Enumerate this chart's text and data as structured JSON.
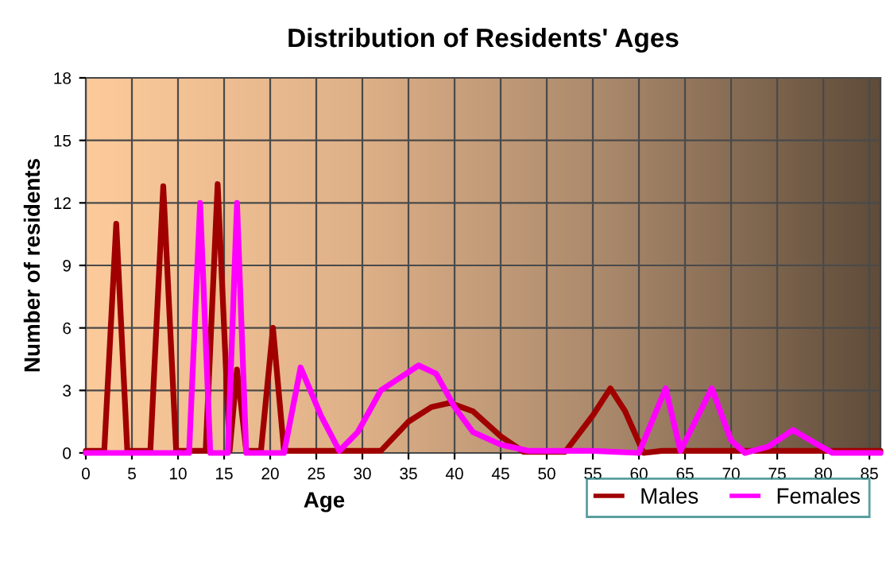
{
  "chart_data": {
    "type": "line",
    "title": "Distribution of Residents' Ages",
    "xlabel": "Age",
    "ylabel": "Number of residents",
    "xlim": [
      0,
      86.2
    ],
    "xticks": [
      0,
      5,
      10,
      15,
      20,
      25,
      30,
      35,
      40,
      45,
      50,
      55,
      60,
      65,
      70,
      75,
      80,
      85
    ],
    "ylim": [
      0,
      18
    ],
    "yticks": [
      0,
      3,
      6,
      9,
      12,
      15,
      18
    ],
    "grid": true,
    "legend": "bottom right",
    "line_style": "solid",
    "marker": "none",
    "series": [
      {
        "name": "Males",
        "color": "#a00000",
        "x": [
          0,
          2,
          3.3,
          4.5,
          7,
          8.4,
          9.8,
          13,
          14.3,
          15.6,
          16.4,
          17.4,
          19,
          20.3,
          21.5,
          25,
          30,
          32,
          35,
          37.5,
          39.5,
          42,
          45,
          47.5,
          52,
          55,
          56.9,
          58.5,
          60.5,
          62.5,
          86.2
        ],
        "values": [
          0.1,
          0.1,
          11,
          0.1,
          0.1,
          12.8,
          0.1,
          0.1,
          12.9,
          0.1,
          4,
          0.1,
          0.1,
          6,
          0.1,
          0.1,
          0.1,
          0.1,
          1.5,
          2.2,
          2.4,
          2.0,
          0.8,
          0.05,
          0.05,
          1.8,
          3.1,
          2.0,
          0,
          0.1,
          0.1
        ]
      },
      {
        "name": "Females",
        "color": "#ff00ff",
        "x": [
          0,
          11.2,
          12.4,
          13.5,
          15.4,
          16.4,
          17.4,
          20,
          21.5,
          23.3,
          25.5,
          27.5,
          29.5,
          32,
          36.1,
          38,
          40,
          42,
          45,
          48,
          55,
          60,
          62.9,
          64.5,
          67.9,
          70,
          71.5,
          74,
          76.7,
          79,
          81,
          86.2
        ],
        "values": [
          0,
          0,
          12,
          0,
          0,
          12,
          0,
          0,
          0,
          4.1,
          1.8,
          0.1,
          1,
          3,
          4.2,
          3.8,
          2.2,
          1.0,
          0.4,
          0.1,
          0.1,
          0,
          3.1,
          0.1,
          3.1,
          0.6,
          0,
          0.3,
          1.1,
          0.5,
          0,
          0
        ]
      }
    ]
  }
}
